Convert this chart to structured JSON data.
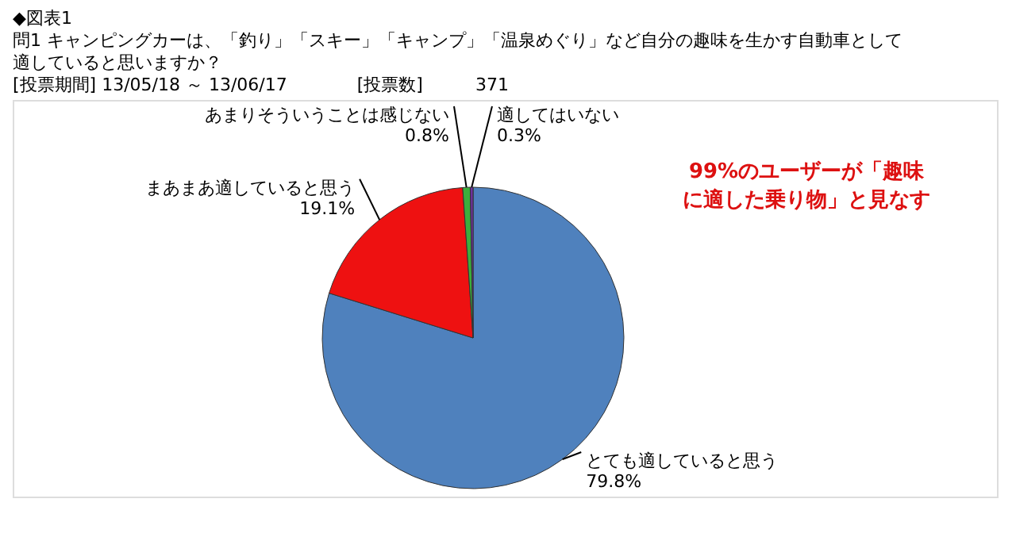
{
  "chart_data": {
    "type": "pie",
    "title": [
      "◆図表1",
      "問1 キャンピングカーは、「釣り」「スキー」「キャンプ」「温泉めぐり」など自分の趣味を生かす自動車として",
      "　　適していると思いますか？"
    ],
    "subtitle": "[投票期間] 13/05/18 ～ 13/06/17　　　　[投票数]　　　371",
    "categories": [
      "とても適していると思う",
      "まあまあ適していると思う",
      "あまりそういうことは感じない",
      "適してはいない"
    ],
    "values": [
      79.8,
      19.1,
      0.8,
      0.3
    ],
    "colors": [
      "#4f81bd",
      "#ee1111",
      "#3cae3c",
      "#7030a0"
    ],
    "value_labels": [
      "79.8%",
      "19.1%",
      "0.8%",
      "0.3%"
    ],
    "legend": false,
    "annotations": [
      "99%のユーザーが「趣味に適した乗り物」と見なす"
    ]
  }
}
